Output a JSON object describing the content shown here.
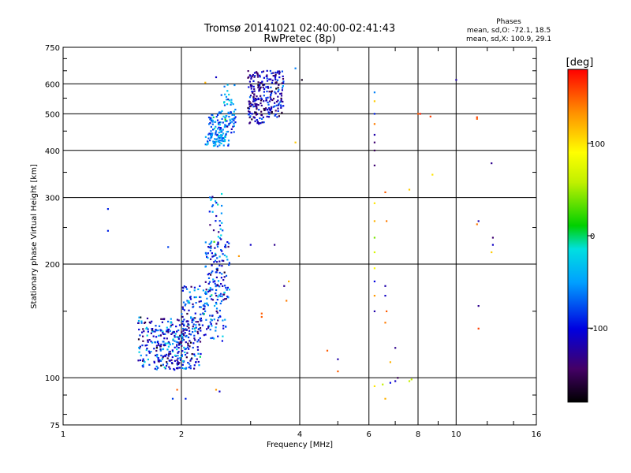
{
  "chart_data": {
    "type": "scatter",
    "title": "Tromsø 20141021 02:40:00-02:41:43",
    "subtitle": "RwPretec (8p)",
    "xlabel": "Frequency [MHz]",
    "ylabel": "Stationary phase Virtual Height [km]",
    "x_scale": "log",
    "y_scale": "log",
    "xlim": [
      1,
      16
    ],
    "ylim": [
      75,
      750
    ],
    "x_ticks": [
      1,
      2,
      4,
      6,
      8,
      10,
      16
    ],
    "y_ticks": [
      75,
      100,
      200,
      300,
      400,
      500,
      600,
      750
    ],
    "grid": true,
    "phase_info": {
      "heading": "Phases",
      "line1": "mean, sd,O: -72.1, 18.5",
      "line2": "mean, sd,X: 100.9, 29.1"
    },
    "colorbar": {
      "label": "[deg]",
      "range": [
        -180,
        180
      ],
      "ticks": [
        100,
        0,
        -100
      ],
      "tick_labels": [
        "100",
        "0",
        "-100"
      ]
    },
    "clusters": [
      {
        "fmin": 1.55,
        "fmax": 2.25,
        "hmin": 105,
        "hmax": 145,
        "n": 220,
        "phase": -95,
        "phase_sd": 40
      },
      {
        "fmin": 1.7,
        "fmax": 2.1,
        "hmin": 105,
        "hmax": 135,
        "n": 120,
        "phase": -85,
        "phase_sd": 35
      },
      {
        "fmin": 2.0,
        "fmax": 2.6,
        "hmin": 125,
        "hmax": 175,
        "n": 160,
        "phase": -80,
        "phase_sd": 35
      },
      {
        "fmin": 2.3,
        "fmax": 2.65,
        "hmin": 160,
        "hmax": 230,
        "n": 110,
        "phase": -85,
        "phase_sd": 35
      },
      {
        "fmin": 2.35,
        "fmax": 2.55,
        "hmin": 215,
        "hmax": 310,
        "n": 30,
        "phase": -70,
        "phase_sd": 40
      },
      {
        "fmin": 2.3,
        "fmax": 2.65,
        "hmin": 410,
        "hmax": 445,
        "n": 60,
        "phase": -55,
        "phase_sd": 20
      },
      {
        "fmin": 2.35,
        "fmax": 2.75,
        "hmin": 430,
        "hmax": 510,
        "n": 90,
        "phase": -60,
        "phase_sd": 25
      },
      {
        "fmin": 2.5,
        "fmax": 2.75,
        "hmin": 480,
        "hmax": 600,
        "n": 30,
        "phase": -50,
        "phase_sd": 30
      },
      {
        "fmin": 2.95,
        "fmax": 3.25,
        "hmin": 470,
        "hmax": 650,
        "n": 140,
        "phase": -120,
        "phase_sd": 25
      },
      {
        "fmin": 3.25,
        "fmax": 3.65,
        "hmin": 490,
        "hmax": 650,
        "n": 120,
        "phase": -110,
        "phase_sd": 30
      }
    ],
    "scattered_points": [
      {
        "x": 1.3,
        "y": 280,
        "phase": -90
      },
      {
        "x": 1.3,
        "y": 245,
        "phase": -90
      },
      {
        "x": 1.85,
        "y": 222,
        "phase": -80
      },
      {
        "x": 1.9,
        "y": 88,
        "phase": -80
      },
      {
        "x": 1.95,
        "y": 93,
        "phase": 150
      },
      {
        "x": 2.05,
        "y": 88,
        "phase": -90
      },
      {
        "x": 2.45,
        "y": 93,
        "phase": 130
      },
      {
        "x": 2.5,
        "y": 92,
        "phase": -110
      },
      {
        "x": 2.4,
        "y": 275,
        "phase": -40
      },
      {
        "x": 2.45,
        "y": 625,
        "phase": -110
      },
      {
        "x": 2.3,
        "y": 605,
        "phase": 120
      },
      {
        "x": 2.8,
        "y": 210,
        "phase": 130
      },
      {
        "x": 3.0,
        "y": 225,
        "phase": -110
      },
      {
        "x": 3.2,
        "y": 145,
        "phase": 150
      },
      {
        "x": 3.2,
        "y": 148,
        "phase": 150
      },
      {
        "x": 3.45,
        "y": 225,
        "phase": -130
      },
      {
        "x": 3.65,
        "y": 175,
        "phase": -130
      },
      {
        "x": 3.7,
        "y": 160,
        "phase": 140
      },
      {
        "x": 3.75,
        "y": 180,
        "phase": 120
      },
      {
        "x": 3.9,
        "y": 420,
        "phase": 110
      },
      {
        "x": 4.05,
        "y": 615,
        "phase": -170
      },
      {
        "x": 3.9,
        "y": 660,
        "phase": -60
      },
      {
        "x": 4.7,
        "y": 118,
        "phase": 150
      },
      {
        "x": 5.0,
        "y": 112,
        "phase": -120
      },
      {
        "x": 5.0,
        "y": 104,
        "phase": 150
      },
      {
        "x": 6.2,
        "y": 570,
        "phase": -60
      },
      {
        "x": 6.2,
        "y": 540,
        "phase": 110
      },
      {
        "x": 6.2,
        "y": 500,
        "phase": -90
      },
      {
        "x": 6.2,
        "y": 470,
        "phase": 140
      },
      {
        "x": 6.2,
        "y": 440,
        "phase": -120
      },
      {
        "x": 6.2,
        "y": 420,
        "phase": -140
      },
      {
        "x": 6.2,
        "y": 400,
        "phase": -150
      },
      {
        "x": 6.2,
        "y": 365,
        "phase": -140
      },
      {
        "x": 6.2,
        "y": 290,
        "phase": 100
      },
      {
        "x": 6.2,
        "y": 260,
        "phase": 120
      },
      {
        "x": 6.2,
        "y": 235,
        "phase": 40
      },
      {
        "x": 6.2,
        "y": 215,
        "phase": 70
      },
      {
        "x": 6.2,
        "y": 195,
        "phase": 90
      },
      {
        "x": 6.2,
        "y": 180,
        "phase": -100
      },
      {
        "x": 6.2,
        "y": 165,
        "phase": 130
      },
      {
        "x": 6.2,
        "y": 150,
        "phase": -120
      },
      {
        "x": 6.2,
        "y": 95,
        "phase": 100
      },
      {
        "x": 6.6,
        "y": 310,
        "phase": 150
      },
      {
        "x": 6.65,
        "y": 260,
        "phase": 140
      },
      {
        "x": 6.6,
        "y": 175,
        "phase": -120
      },
      {
        "x": 6.6,
        "y": 165,
        "phase": -110
      },
      {
        "x": 6.65,
        "y": 150,
        "phase": 150
      },
      {
        "x": 6.6,
        "y": 140,
        "phase": 140
      },
      {
        "x": 6.5,
        "y": 96,
        "phase": 60
      },
      {
        "x": 6.6,
        "y": 88,
        "phase": 120
      },
      {
        "x": 6.8,
        "y": 97,
        "phase": -100
      },
      {
        "x": 7.0,
        "y": 98,
        "phase": -110
      },
      {
        "x": 7.1,
        "y": 100,
        "phase": -150
      },
      {
        "x": 7.0,
        "y": 120,
        "phase": -130
      },
      {
        "x": 6.8,
        "y": 110,
        "phase": 120
      },
      {
        "x": 7.6,
        "y": 315,
        "phase": 110
      },
      {
        "x": 7.6,
        "y": 98,
        "phase": 60
      },
      {
        "x": 7.7,
        "y": 99,
        "phase": 60
      },
      {
        "x": 8.0,
        "y": 500,
        "phase": 150
      },
      {
        "x": 8.1,
        "y": 500,
        "phase": 170
      },
      {
        "x": 8.6,
        "y": 492,
        "phase": 160
      },
      {
        "x": 8.7,
        "y": 345,
        "phase": 100
      },
      {
        "x": 10.0,
        "y": 615,
        "phase": -120
      },
      {
        "x": 11.3,
        "y": 490,
        "phase": 160
      },
      {
        "x": 11.3,
        "y": 485,
        "phase": 150
      },
      {
        "x": 11.4,
        "y": 260,
        "phase": -120
      },
      {
        "x": 11.3,
        "y": 255,
        "phase": 140
      },
      {
        "x": 11.4,
        "y": 155,
        "phase": -130
      },
      {
        "x": 11.4,
        "y": 135,
        "phase": 160
      },
      {
        "x": 12.3,
        "y": 370,
        "phase": -130
      },
      {
        "x": 12.4,
        "y": 235,
        "phase": -140
      },
      {
        "x": 12.4,
        "y": 225,
        "phase": -110
      },
      {
        "x": 12.3,
        "y": 215,
        "phase": 110
      }
    ]
  }
}
